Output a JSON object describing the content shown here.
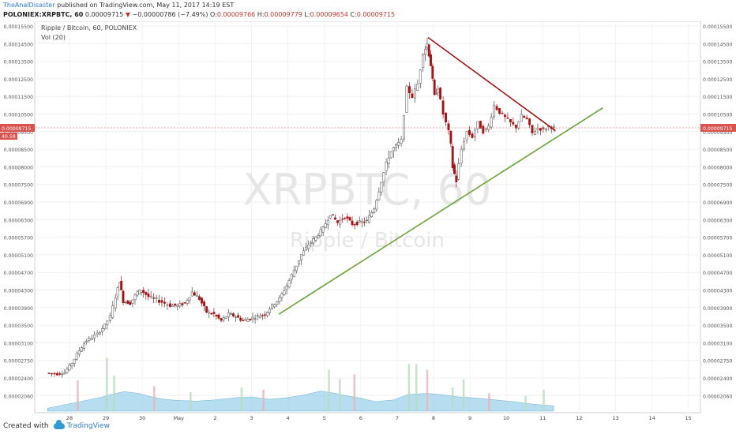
{
  "header": {
    "author": "TheAnalDisaster",
    "published_text": "published on TradingView.com, May 11, 2017 14:19 EST",
    "symbol": "POLONIEX:XRPBTC, 60",
    "last": "0.00009715",
    "change": "−0.00000786 (−7.49%)",
    "o_label": "O:",
    "o": "0.00009766",
    "h_label": "H:",
    "h": "0.00009779",
    "l_label": "L:",
    "l": "0.00009654",
    "c_label": "C:",
    "c": "0.00009715"
  },
  "legend": {
    "line1": "Ripple / Bitcoin, 60, POLONIEX",
    "line2": "Vol (20)"
  },
  "watermark": {
    "symbol": "XRPBTC, 60",
    "name": "Ripple / Bitcoin"
  },
  "price_tag": {
    "value": "0.00009715",
    "vol": "40.59"
  },
  "footer": {
    "created_with": "Created with",
    "brand": "TradingView"
  },
  "colors": {
    "up": "#4a4a4a",
    "down": "#a31515",
    "trend_up": "#6aa73a",
    "trend_down": "#a31515",
    "volume": "#8fcbe8",
    "price_tag": "#d9534f"
  },
  "chart_data": {
    "type": "candlestick",
    "symbol": "XRPBTC",
    "interval": "60",
    "y_ticks": [
      "0.00015500",
      "0.00014500",
      "0.00013500",
      "0.00012500",
      "0.00011500",
      "0.00010500",
      "0.00009500",
      "0.00008500",
      "0.00008000",
      "0.00007500",
      "0.00006900",
      "0.00006300",
      "0.00005700",
      "0.00005100",
      "0.00004700",
      "0.00004300",
      "0.00003900",
      "0.00003500",
      "0.00003100",
      "0.00002750",
      "0.00002400",
      "0.00002060"
    ],
    "x_ticks": [
      "28",
      "29",
      "30",
      "May",
      "2",
      "3",
      "4",
      "5",
      "6",
      "7",
      "8",
      "9",
      "10",
      "11",
      "12",
      "13",
      "14",
      "15"
    ],
    "price_path": [
      [
        -0.6,
        2.5e-05
      ],
      [
        -0.3,
        2.48e-05
      ],
      [
        -0.1,
        2.51e-05
      ],
      [
        0.1,
        2.7e-05
      ],
      [
        0.3,
        2.95e-05
      ],
      [
        0.5,
        3.15e-05
      ],
      [
        0.8,
        3.3e-05
      ],
      [
        1.0,
        3.5e-05
      ],
      [
        1.15,
        3.7e-05
      ],
      [
        1.3,
        4.15e-05
      ],
      [
        1.4,
        4.5e-05
      ],
      [
        1.5,
        4.05e-05
      ],
      [
        1.7,
        4e-05
      ],
      [
        1.9,
        4.25e-05
      ],
      [
        2.0,
        4.3e-05
      ],
      [
        2.2,
        4.15e-05
      ],
      [
        2.5,
        4.05e-05
      ],
      [
        2.8,
        3.95e-05
      ],
      [
        3.0,
        3.95e-05
      ],
      [
        3.2,
        4e-05
      ],
      [
        3.4,
        4.25e-05
      ],
      [
        3.6,
        4.1e-05
      ],
      [
        3.8,
        3.8e-05
      ],
      [
        4.0,
        3.75e-05
      ],
      [
        4.2,
        3.6e-05
      ],
      [
        4.4,
        3.75e-05
      ],
      [
        4.6,
        3.7e-05
      ],
      [
        4.8,
        3.6e-05
      ],
      [
        5.0,
        3.65e-05
      ],
      [
        5.2,
        3.7e-05
      ],
      [
        5.4,
        3.75e-05
      ],
      [
        5.6,
        3.95e-05
      ],
      [
        5.8,
        4.1e-05
      ],
      [
        6.0,
        4.4e-05
      ],
      [
        6.2,
        4.75e-05
      ],
      [
        6.4,
        5.1e-05
      ],
      [
        6.6,
        5.45e-05
      ],
      [
        6.8,
        5.7e-05
      ],
      [
        7.0,
        6e-05
      ],
      [
        7.2,
        6.5e-05
      ],
      [
        7.4,
        6.2e-05
      ],
      [
        7.6,
        6.4e-05
      ],
      [
        7.8,
        6.15e-05
      ],
      [
        8.0,
        6.2e-05
      ],
      [
        8.2,
        6.25e-05
      ],
      [
        8.4,
        6.7e-05
      ],
      [
        8.6,
        7.6e-05
      ],
      [
        8.8,
        8.3e-05
      ],
      [
        9.0,
        8.7e-05
      ],
      [
        9.15,
        9e-05
      ],
      [
        9.3,
        0.00012
      ],
      [
        9.45,
        0.000115
      ],
      [
        9.6,
        0.000122
      ],
      [
        9.75,
        0.00014
      ],
      [
        9.85,
        0.000145
      ],
      [
        9.95,
        0.000133
      ],
      [
        10.05,
        0.000115
      ],
      [
        10.15,
        0.00012
      ],
      [
        10.3,
        0.000105
      ],
      [
        10.45,
        9.5e-05
      ],
      [
        10.55,
        8e-05
      ],
      [
        10.65,
        7.6e-05
      ],
      [
        10.8,
        8.5e-05
      ],
      [
        10.95,
        9.5e-05
      ],
      [
        11.1,
        9.2e-05
      ],
      [
        11.25,
        0.0001
      ],
      [
        11.4,
        9.5e-05
      ],
      [
        11.55,
        9.8e-05
      ],
      [
        11.7,
        0.00011
      ],
      [
        11.85,
        0.000106
      ],
      [
        12.0,
        0.000103
      ],
      [
        12.15,
        0.0001
      ],
      [
        12.3,
        9.75e-05
      ],
      [
        12.45,
        0.000104
      ],
      [
        12.6,
        0.000102
      ],
      [
        12.75,
        9.4e-05
      ],
      [
        12.9,
        9.7e-05
      ],
      [
        13.05,
        9.6e-05
      ],
      [
        13.2,
        9.8e-05
      ],
      [
        13.35,
        9.715e-05
      ]
    ],
    "volume_profile": [
      [
        -0.6,
        0.5
      ],
      [
        -0.2,
        1.0
      ],
      [
        0.3,
        1.6
      ],
      [
        0.9,
        2.4
      ],
      [
        1.2,
        2.9
      ],
      [
        1.5,
        3.3
      ],
      [
        1.9,
        3.0
      ],
      [
        2.2,
        2.5
      ],
      [
        2.6,
        2.0
      ],
      [
        3.0,
        1.8
      ],
      [
        3.5,
        1.7
      ],
      [
        4.0,
        1.9
      ],
      [
        4.6,
        2.3
      ],
      [
        5.0,
        2.4
      ],
      [
        5.5,
        2.0
      ],
      [
        6.0,
        2.3
      ],
      [
        6.5,
        2.8
      ],
      [
        6.9,
        3.4
      ],
      [
        7.3,
        3.0
      ],
      [
        7.7,
        2.5
      ],
      [
        8.0,
        2.2
      ],
      [
        8.4,
        1.6
      ],
      [
        8.9,
        1.9
      ],
      [
        9.3,
        2.8
      ],
      [
        9.8,
        3.0
      ],
      [
        10.2,
        2.8
      ],
      [
        10.7,
        2.4
      ],
      [
        11.2,
        2.2
      ],
      [
        11.7,
        1.9
      ],
      [
        12.2,
        1.6
      ],
      [
        12.7,
        1.2
      ],
      [
        13.3,
        0.9
      ]
    ],
    "volume_spikes": [
      [
        0.2,
        5.2
      ],
      [
        1.0,
        9.0
      ],
      [
        1.2,
        6.0
      ],
      [
        2.3,
        4.2
      ],
      [
        3.3,
        3.2
      ],
      [
        4.7,
        4.0
      ],
      [
        5.3,
        3.6
      ],
      [
        7.1,
        7.0
      ],
      [
        7.4,
        5.4
      ],
      [
        7.8,
        6.2
      ],
      [
        9.3,
        8.0
      ],
      [
        9.5,
        8.0
      ],
      [
        9.8,
        7.0
      ],
      [
        10.5,
        4.0
      ],
      [
        10.8,
        5.4
      ],
      [
        11.5,
        3.0
      ],
      [
        12.5,
        2.6
      ],
      [
        13.0,
        3.6
      ]
    ],
    "last_price": 9.715e-05,
    "last_volume": 40.59,
    "trendlines": [
      {
        "type": "support",
        "from": [
          5.75,
          3.75e-05
        ],
        "to": [
          14.65,
          0.0001085
        ]
      },
      {
        "type": "resistance",
        "from": [
          9.85,
          0.0001485
        ],
        "to": [
          13.35,
          9.55e-05
        ]
      }
    ]
  }
}
